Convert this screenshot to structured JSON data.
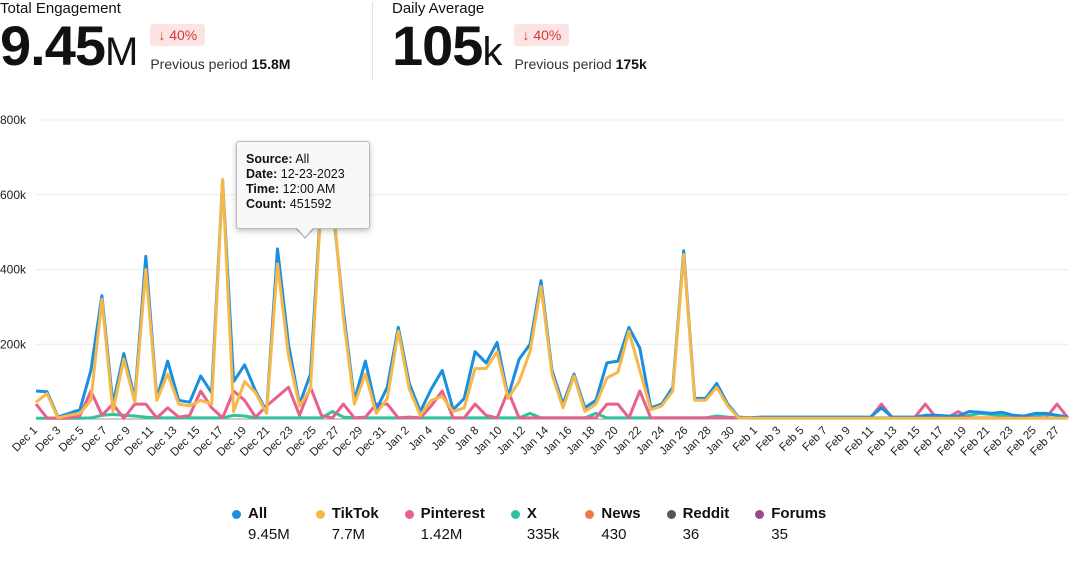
{
  "kpis": [
    {
      "label": "Total Engagement",
      "value": "9.45",
      "unit": "M",
      "badge": "↓ 40%",
      "prev_label": "Previous period",
      "prev_value": "15.8M"
    },
    {
      "label": "Daily Average",
      "value": "105",
      "unit": "k",
      "badge": "↓ 40%",
      "prev_label": "Previous period",
      "prev_value": "175k"
    }
  ],
  "tooltip": {
    "source_label": "Source:",
    "source": "All",
    "date_label": "Date:",
    "date": "12-23-2023",
    "time_label": "Time:",
    "time": "12:00 AM",
    "count_label": "Count:",
    "count": "451592"
  },
  "chart_data": {
    "type": "line",
    "title": "",
    "ylim": [
      0,
      800000
    ],
    "yticks": [
      0,
      200000,
      400000,
      600000,
      800000
    ],
    "ytick_labels": [
      "",
      "200k",
      "400k",
      "600k",
      "800k"
    ],
    "x_tick_labels": [
      "Dec 1",
      "Dec 3",
      "Dec 5",
      "Dec 7",
      "Dec 9",
      "Dec 11",
      "Dec 13",
      "Dec 15",
      "Dec 17",
      "Dec 19",
      "Dec 21",
      "Dec 23",
      "Dec 25",
      "Dec 27",
      "Dec 29",
      "Dec 31",
      "Jan 2",
      "Jan 4",
      "Jan 6",
      "Jan 8",
      "Jan 10",
      "Jan 12",
      "Jan 14",
      "Jan 16",
      "Jan 18",
      "Jan 20",
      "Jan 22",
      "Jan 24",
      "Jan 26",
      "Jan 28",
      "Jan 30",
      "Feb 1",
      "Feb 3",
      "Feb 5",
      "Feb 7",
      "Feb 9",
      "Feb 11",
      "Feb 13",
      "Feb 15",
      "Feb 17",
      "Feb 19",
      "Feb 21",
      "Feb 23",
      "Feb 25",
      "Feb 27"
    ],
    "series": [
      {
        "name": "All",
        "color": "#1a8fe0",
        "total": "9.45M",
        "values": [
          75000,
          73000,
          5000,
          15000,
          25000,
          130000,
          330000,
          40000,
          175000,
          55000,
          435000,
          55000,
          155000,
          50000,
          45000,
          115000,
          70000,
          640000,
          100000,
          145000,
          75000,
          20000,
          455000,
          200000,
          40000,
          120000,
          600000,
          580000,
          290000,
          50000,
          155000,
          25000,
          85000,
          245000,
          95000,
          20000,
          80000,
          130000,
          25000,
          55000,
          180000,
          150000,
          205000,
          60000,
          160000,
          200000,
          370000,
          130000,
          40000,
          120000,
          30000,
          50000,
          150000,
          155000,
          245000,
          190000,
          30000,
          40000,
          85000,
          450000,
          55000,
          55000,
          95000,
          40000,
          5000,
          3000,
          5000,
          5000,
          5000,
          5000,
          5000,
          5000,
          5000,
          5000,
          5000,
          5000,
          5000,
          30000,
          5000,
          5000,
          5000,
          10000,
          10000,
          8000,
          8000,
          20000,
          18000,
          15000,
          18000,
          10000,
          8000,
          15000,
          15000,
          10000,
          5000
        ]
      },
      {
        "name": "TikTok",
        "color": "#f7b84a",
        "total": "7.7M",
        "values": [
          45000,
          68000,
          3000,
          10000,
          15000,
          50000,
          320000,
          20000,
          160000,
          45000,
          400000,
          50000,
          120000,
          40000,
          35000,
          50000,
          40000,
          640000,
          20000,
          100000,
          70000,
          15000,
          415000,
          170000,
          35000,
          80000,
          590000,
          600000,
          270000,
          40000,
          120000,
          15000,
          55000,
          235000,
          80000,
          10000,
          50000,
          60000,
          20000,
          30000,
          135000,
          135000,
          180000,
          55000,
          100000,
          180000,
          355000,
          120000,
          30000,
          115000,
          20000,
          40000,
          110000,
          125000,
          235000,
          130000,
          25000,
          35000,
          75000,
          440000,
          50000,
          50000,
          85000,
          35000,
          3000,
          2000,
          2000,
          2000,
          2000,
          2000,
          2000,
          2000,
          2000,
          2000,
          2000,
          2000,
          2000,
          2000,
          2000,
          2000,
          2000,
          2000,
          2000,
          2000,
          2000,
          2000,
          2000,
          2000,
          2000,
          2000,
          2000,
          2000,
          2000,
          2000,
          2000
        ]
      },
      {
        "name": "Pinterest",
        "color": "#e8608c",
        "total": "1.42M",
        "values": [
          40000,
          3000,
          2000,
          3000,
          8000,
          75000,
          10000,
          40000,
          2000,
          40000,
          40000,
          3000,
          30000,
          5000,
          10000,
          75000,
          30000,
          3000,
          75000,
          50000,
          5000,
          35000,
          60000,
          85000,
          10000,
          85000,
          10000,
          3000,
          40000,
          3000,
          5000,
          40000,
          40000,
          3000,
          5000,
          3000,
          35000,
          75000,
          3000,
          3000,
          40000,
          10000,
          3000,
          75000,
          3000,
          3000,
          3000,
          3000,
          3000,
          3000,
          3000,
          3000,
          40000,
          40000,
          3000,
          75000,
          3000,
          3000,
          3000,
          3000,
          3000,
          3000,
          3000,
          3000,
          3000,
          3000,
          3000,
          3000,
          3000,
          3000,
          3000,
          3000,
          3000,
          3000,
          3000,
          3000,
          3000,
          40000,
          3000,
          3000,
          3000,
          40000,
          3000,
          3000,
          20000,
          3000,
          3000,
          3000,
          3000,
          3000,
          3000,
          3000,
          3000,
          40000,
          3000
        ]
      },
      {
        "name": "X",
        "color": "#2ec4a0",
        "total": "335k",
        "values": [
          2000,
          2000,
          2000,
          2000,
          2000,
          3000,
          10000,
          12000,
          10000,
          8000,
          5000,
          3000,
          3000,
          3000,
          3000,
          3000,
          3000,
          3000,
          10000,
          8000,
          3000,
          3000,
          3000,
          3000,
          3000,
          3000,
          3000,
          20000,
          5000,
          3000,
          3000,
          3000,
          3000,
          3000,
          3000,
          3000,
          3000,
          3000,
          3000,
          3000,
          3000,
          3000,
          3000,
          3000,
          3000,
          15000,
          3000,
          3000,
          3000,
          3000,
          3000,
          15000,
          3000,
          3000,
          3000,
          3000,
          3000,
          3000,
          3000,
          3000,
          3000,
          3000,
          8000,
          5000,
          3000,
          3000,
          3000,
          3000,
          3000,
          3000,
          3000,
          3000,
          3000,
          3000,
          3000,
          3000,
          3000,
          3000,
          3000,
          3000,
          3000,
          3000,
          3000,
          3000,
          3000,
          10000,
          15000,
          12000,
          10000,
          8000,
          5000,
          10000,
          12000,
          10000,
          5000
        ]
      },
      {
        "name": "News",
        "color": "#f5784a",
        "total": "430",
        "values": []
      },
      {
        "name": "Reddit",
        "color": "#555555",
        "total": "36",
        "values": []
      },
      {
        "name": "Forums",
        "color": "#9a4a8a",
        "total": "35",
        "values": []
      }
    ]
  }
}
